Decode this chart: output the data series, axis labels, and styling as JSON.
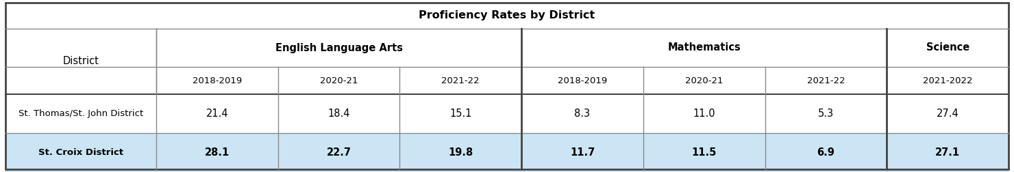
{
  "title": "Proficiency Rates by District",
  "col_groups": [
    {
      "label": "English Language Arts",
      "span": 3
    },
    {
      "label": "Mathematics",
      "span": 3
    },
    {
      "label": "Science",
      "span": 1
    }
  ],
  "sub_headers": [
    "2018-2019",
    "2020-21",
    "2021-22",
    "2018-2019",
    "2020-21",
    "2021-22",
    "2021-2022"
  ],
  "row_header": "District",
  "rows": [
    {
      "label": "St. Thomas/St. John District",
      "values": [
        "21.4",
        "18.4",
        "15.1",
        "8.3",
        "11.0",
        "5.3",
        "27.4"
      ],
      "bg": "#ffffff"
    },
    {
      "label": "St. Croix District",
      "values": [
        "28.1",
        "22.7",
        "19.8",
        "11.7",
        "11.5",
        "6.9",
        "27.1"
      ],
      "bg": "#cce5f5"
    }
  ],
  "title_fontsize": 11.5,
  "header_fontsize": 10.5,
  "subheader_fontsize": 9.5,
  "cell_fontsize": 10.5,
  "district_label_fontsize": 9.5,
  "border_color": "#888888",
  "thick_border_color": "#444444",
  "group_border_color": "#444444"
}
